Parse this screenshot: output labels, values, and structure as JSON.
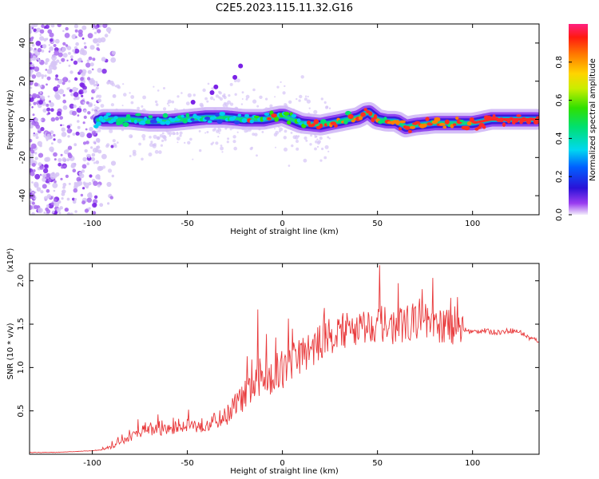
{
  "title": "C2E5.2023.115.11.32.G16",
  "chart_data": [
    {
      "type": "heatmap",
      "xlabel": "Height of straight line (km)",
      "ylabel": "Frequency (Hz)",
      "xlim": [
        -133,
        135
      ],
      "ylim": [
        -50,
        50
      ],
      "x_ticks": [
        -100,
        -50,
        0,
        50,
        100
      ],
      "y_ticks": [
        -40,
        -20,
        0,
        20,
        40
      ],
      "colorbar": {
        "label": "Normalized spectral amplitude",
        "range": [
          0,
          1
        ],
        "ticks": [
          0.0,
          0.2,
          0.4,
          0.6,
          0.8
        ]
      },
      "ridge": {
        "x": [
          -133,
          -110,
          -95,
          -80,
          -70,
          -60,
          -50,
          -40,
          -30,
          -20,
          -10,
          0,
          10,
          20,
          30,
          40,
          45,
          50,
          55,
          60,
          65,
          70,
          80,
          90,
          100,
          110,
          120,
          135
        ],
        "frequency": [
          -2,
          -3,
          0,
          0,
          -1,
          -1,
          0,
          1,
          1,
          0,
          0,
          2,
          -2,
          -3,
          -1,
          1,
          4,
          0,
          -1,
          -1,
          -4,
          -3,
          -2,
          -2,
          -2,
          0,
          0,
          0
        ]
      },
      "outliers": [
        {
          "x": -47,
          "frequency": 9
        },
        {
          "x": -37,
          "frequency": 14
        },
        {
          "x": -35,
          "frequency": 17
        },
        {
          "x": -25,
          "frequency": 22
        },
        {
          "x": -22,
          "frequency": 28
        }
      ]
    },
    {
      "type": "line",
      "xlabel": "Height of straight line (km)",
      "ylabel": "SNR (10 * v/v)",
      "y_multiplier": "(x10⁴)",
      "xlim": [
        -133,
        135
      ],
      "ylim": [
        0,
        2.2
      ],
      "x_ticks": [
        -100,
        -50,
        0,
        50,
        100
      ],
      "y_ticks": [
        0.5,
        1.0,
        1.5,
        2.0
      ],
      "series": [
        {
          "color": "#e8383a",
          "x": [
            -133,
            -120,
            -110,
            -100,
            -95,
            -90,
            -85,
            -80,
            -75,
            -70,
            -65,
            -60,
            -55,
            -50,
            -45,
            -40,
            -35,
            -30,
            -25,
            -20,
            -15,
            -10,
            -5,
            0,
            5,
            10,
            15,
            20,
            25,
            30,
            35,
            40,
            45,
            50,
            55,
            60,
            65,
            70,
            75,
            80,
            85,
            90,
            95,
            100,
            105,
            110,
            115,
            120,
            125,
            130,
            135
          ],
          "values": [
            0.02,
            0.02,
            0.03,
            0.04,
            0.05,
            0.08,
            0.12,
            0.18,
            0.24,
            0.26,
            0.25,
            0.26,
            0.3,
            0.33,
            0.3,
            0.32,
            0.36,
            0.4,
            0.52,
            0.62,
            0.72,
            0.78,
            0.85,
            0.9,
            0.98,
            1.08,
            1.15,
            1.22,
            1.3,
            1.35,
            1.38,
            1.4,
            1.42,
            1.45,
            1.42,
            1.4,
            1.45,
            1.48,
            1.42,
            1.4,
            1.42,
            1.4,
            1.43,
            1.4,
            1.42,
            1.4,
            1.4,
            1.42,
            1.4,
            1.33,
            1.3
          ]
        }
      ],
      "annotations": [
        {
          "x": -13,
          "value": 1.67
        },
        {
          "x": 51,
          "value": 2.18
        }
      ]
    }
  ]
}
